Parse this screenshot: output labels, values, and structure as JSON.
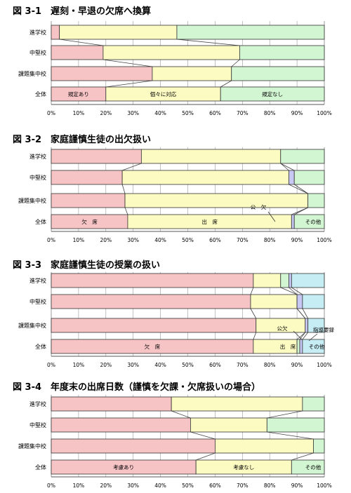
{
  "colors": {
    "pink": "#f7c4c6",
    "yellow": "#fbfbc2",
    "green": "#d2f5d2",
    "lavender": "#c8c8f5",
    "lightblue": "#c6ecf4",
    "border": "#333333",
    "grid": "#9a9a9a"
  },
  "chart_data": [
    {
      "type": "bar",
      "stacked": true,
      "orientation": "horizontal",
      "title": "図 3-1　遅刻・早退の欠席へ換算",
      "categories": [
        "進学校",
        "中堅校",
        "課題集中校",
        "全体"
      ],
      "xlim": [
        0,
        100
      ],
      "xticks": [
        "0%",
        "10%",
        "20%",
        "30%",
        "40%",
        "50%",
        "60%",
        "70%",
        "80%",
        "90%",
        "100%"
      ],
      "series": [
        {
          "name": "規定あり",
          "color": "pink",
          "values": [
            3,
            19,
            37,
            20
          ]
        },
        {
          "name": "個々に対応",
          "color": "yellow",
          "values": [
            43,
            50,
            29,
            42
          ]
        },
        {
          "name": "規定なし",
          "color": "green",
          "values": [
            54,
            31,
            34,
            38
          ]
        }
      ]
    },
    {
      "type": "bar",
      "stacked": true,
      "orientation": "horizontal",
      "title": "図 3-2　家庭謹慎生徒の出欠扱い",
      "categories": [
        "進学校",
        "中堅校",
        "課題集中校",
        "全体"
      ],
      "xlim": [
        0,
        100
      ],
      "xticks": [
        "0%",
        "10%",
        "20%",
        "30%",
        "40%",
        "50%",
        "60%",
        "70%",
        "80%",
        "90%",
        "100%"
      ],
      "series": [
        {
          "name": "欠　席",
          "color": "pink",
          "values": [
            33,
            26,
            27,
            28
          ]
        },
        {
          "name": "出　席",
          "color": "yellow",
          "values": [
            51,
            61,
            67,
            60
          ]
        },
        {
          "name": "公　欠",
          "color": "lavender",
          "values": [
            0,
            2,
            0,
            1
          ]
        },
        {
          "name": "その他",
          "color": "green",
          "values": [
            16,
            11,
            6,
            11
          ]
        }
      ]
    },
    {
      "type": "bar",
      "stacked": true,
      "orientation": "horizontal",
      "title": "図 3-3　家庭謹慎生徒の授業の扱い",
      "categories": [
        "進学校",
        "中堅校",
        "課題集中校",
        "全体"
      ],
      "xlim": [
        0,
        100
      ],
      "xticks": [
        "0%",
        "10%",
        "20%",
        "30%",
        "40%",
        "50%",
        "60%",
        "70%",
        "80%",
        "90%",
        "100%"
      ],
      "series": [
        {
          "name": "欠　席",
          "color": "pink",
          "values": [
            74,
            73,
            75,
            74
          ]
        },
        {
          "name": "出　席",
          "color": "yellow",
          "values": [
            10,
            17,
            18,
            16
          ]
        },
        {
          "name": "公欠",
          "color": "green",
          "values": [
            3,
            0,
            0,
            1
          ]
        },
        {
          "name": "指導要録",
          "color": "lavender",
          "values": [
            1,
            2,
            1,
            1
          ]
        },
        {
          "name": "その他",
          "color": "lightblue",
          "values": [
            12,
            8,
            6,
            8
          ]
        }
      ]
    },
    {
      "type": "bar",
      "stacked": true,
      "orientation": "horizontal",
      "title": "図 3-4　年度末の出席日数（謹慎を欠課・欠席扱いの場合）",
      "categories": [
        "進学校",
        "中堅校",
        "課題集中校",
        "全体"
      ],
      "xlim": [
        0,
        100
      ],
      "xticks": [
        "0%",
        "10%",
        "20%",
        "30%",
        "40%",
        "50%",
        "60%",
        "70%",
        "80%",
        "90%",
        "100%"
      ],
      "series": [
        {
          "name": "考慮あり",
          "color": "pink",
          "values": [
            44,
            51,
            60,
            53
          ]
        },
        {
          "name": "考慮なし",
          "color": "yellow",
          "values": [
            48,
            28,
            36,
            35
          ]
        },
        {
          "name": "その他",
          "color": "green",
          "values": [
            8,
            21,
            4,
            12
          ]
        }
      ]
    }
  ]
}
